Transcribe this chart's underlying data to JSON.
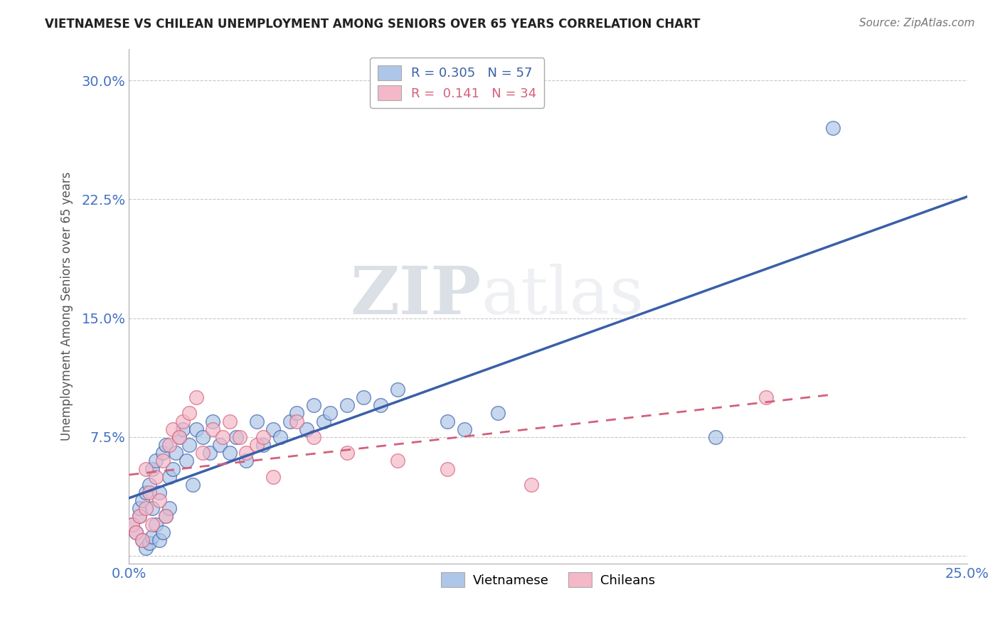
{
  "title": "VIETNAMESE VS CHILEAN UNEMPLOYMENT AMONG SENIORS OVER 65 YEARS CORRELATION CHART",
  "source": "Source: ZipAtlas.com",
  "ylabel": "Unemployment Among Seniors over 65 years",
  "xlabel": "",
  "xlim": [
    0.0,
    0.25
  ],
  "ylim": [
    -0.005,
    0.32
  ],
  "xticks": [
    0.0,
    0.05,
    0.1,
    0.15,
    0.2,
    0.25
  ],
  "yticks": [
    0.0,
    0.075,
    0.15,
    0.225,
    0.3
  ],
  "viet_color": "#aec6e8",
  "chile_color": "#f4b8c8",
  "viet_line_color": "#3a5fa8",
  "chile_line_color": "#d4607a",
  "legend_R_viet": "0.305",
  "legend_N_viet": "57",
  "legend_R_chile": "0.141",
  "legend_N_chile": "34",
  "watermark_zip": "ZIP",
  "watermark_atlas": "atlas",
  "background_color": "#ffffff",
  "grid_color": "#c8c8c8",
  "viet_scatter_x": [
    0.001,
    0.002,
    0.003,
    0.003,
    0.004,
    0.004,
    0.005,
    0.005,
    0.006,
    0.006,
    0.007,
    0.007,
    0.007,
    0.008,
    0.008,
    0.009,
    0.009,
    0.01,
    0.01,
    0.011,
    0.011,
    0.012,
    0.012,
    0.013,
    0.014,
    0.015,
    0.016,
    0.017,
    0.018,
    0.019,
    0.02,
    0.022,
    0.024,
    0.025,
    0.027,
    0.03,
    0.032,
    0.035,
    0.038,
    0.04,
    0.043,
    0.045,
    0.048,
    0.05,
    0.053,
    0.055,
    0.058,
    0.06,
    0.065,
    0.07,
    0.075,
    0.08,
    0.095,
    0.1,
    0.11,
    0.175,
    0.21
  ],
  "viet_scatter_y": [
    0.02,
    0.015,
    0.025,
    0.03,
    0.01,
    0.035,
    0.005,
    0.04,
    0.008,
    0.045,
    0.012,
    0.03,
    0.055,
    0.02,
    0.06,
    0.01,
    0.04,
    0.015,
    0.065,
    0.025,
    0.07,
    0.03,
    0.05,
    0.055,
    0.065,
    0.075,
    0.08,
    0.06,
    0.07,
    0.045,
    0.08,
    0.075,
    0.065,
    0.085,
    0.07,
    0.065,
    0.075,
    0.06,
    0.085,
    0.07,
    0.08,
    0.075,
    0.085,
    0.09,
    0.08,
    0.095,
    0.085,
    0.09,
    0.095,
    0.1,
    0.095,
    0.105,
    0.085,
    0.08,
    0.09,
    0.075,
    0.27
  ],
  "chile_scatter_x": [
    0.001,
    0.002,
    0.003,
    0.004,
    0.005,
    0.005,
    0.006,
    0.007,
    0.008,
    0.009,
    0.01,
    0.011,
    0.012,
    0.013,
    0.015,
    0.016,
    0.018,
    0.02,
    0.022,
    0.025,
    0.028,
    0.03,
    0.033,
    0.035,
    0.038,
    0.04,
    0.043,
    0.05,
    0.055,
    0.065,
    0.08,
    0.095,
    0.12,
    0.19
  ],
  "chile_scatter_y": [
    0.02,
    0.015,
    0.025,
    0.01,
    0.03,
    0.055,
    0.04,
    0.02,
    0.05,
    0.035,
    0.06,
    0.025,
    0.07,
    0.08,
    0.075,
    0.085,
    0.09,
    0.1,
    0.065,
    0.08,
    0.075,
    0.085,
    0.075,
    0.065,
    0.07,
    0.075,
    0.05,
    0.085,
    0.075,
    0.065,
    0.06,
    0.055,
    0.045,
    0.1
  ]
}
